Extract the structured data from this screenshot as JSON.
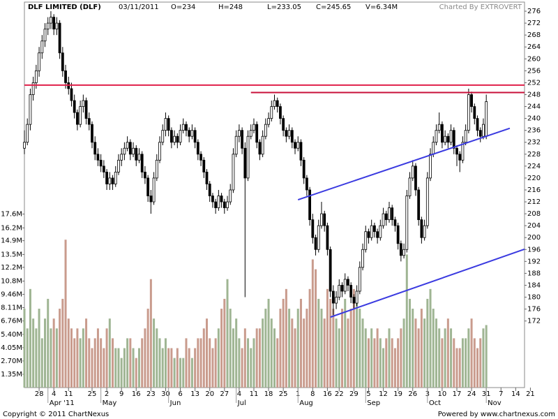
{
  "chart_data": {
    "type": "candlestick",
    "header": [
      "DLF LIMITED (DLF)",
      "03/11/2011",
      "O=234",
      "H=248",
      "L=233.05",
      "C=245.65",
      "V=6.34M"
    ],
    "credit": "Charted By EXTROVERT",
    "footer_left": "Copyright © 2011 ChartNexus",
    "footer_right": "Powered by www.chartnexus.com",
    "up_color": "#ffffff",
    "down_color": "#000000",
    "volume_up_color": "#9fb593",
    "volume_down_color": "#c99b8d",
    "xlim": [
      0,
      170
    ],
    "xticks": [
      {
        "value": 5,
        "label": "28"
      },
      {
        "value": 10,
        "label": "4"
      },
      {
        "value": 15,
        "label": "11"
      },
      {
        "value": 23,
        "label": "25"
      },
      {
        "value": 28,
        "label": "2"
      },
      {
        "value": 33,
        "label": "9"
      },
      {
        "value": 38,
        "label": "16"
      },
      {
        "value": 43,
        "label": "23"
      },
      {
        "value": 48,
        "label": "30"
      },
      {
        "value": 53,
        "label": "6"
      },
      {
        "value": 58,
        "label": "13"
      },
      {
        "value": 63,
        "label": "20"
      },
      {
        "value": 68,
        "label": "27"
      },
      {
        "value": 73,
        "label": "4"
      },
      {
        "value": 78,
        "label": "11"
      },
      {
        "value": 83,
        "label": "18"
      },
      {
        "value": 88,
        "label": "25"
      },
      {
        "value": 93,
        "label": "1"
      },
      {
        "value": 98,
        "label": "8"
      },
      {
        "value": 103,
        "label": "16"
      },
      {
        "value": 107,
        "label": "22"
      },
      {
        "value": 112,
        "label": "29"
      },
      {
        "value": 117,
        "label": "5"
      },
      {
        "value": 122,
        "label": "12"
      },
      {
        "value": 127,
        "label": "19"
      },
      {
        "value": 132,
        "label": "26"
      },
      {
        "value": 137,
        "label": "3"
      },
      {
        "value": 142,
        "label": "10"
      },
      {
        "value": 147,
        "label": "17"
      },
      {
        "value": 152,
        "label": "24"
      },
      {
        "value": 157,
        "label": "31"
      },
      {
        "value": 162,
        "label": "7"
      },
      {
        "value": 167,
        "label": "14"
      },
      {
        "value": 172,
        "label": "21"
      }
    ],
    "month_labels": [
      {
        "value": 8,
        "label": "Apr '11"
      },
      {
        "value": 26,
        "label": "May"
      },
      {
        "value": 49,
        "label": "Jun"
      },
      {
        "value": 72,
        "label": "Jul"
      },
      {
        "value": 93,
        "label": "Aug"
      },
      {
        "value": 116,
        "label": "Sep"
      },
      {
        "value": 137,
        "label": "Oct"
      },
      {
        "value": 157,
        "label": "Nov"
      }
    ],
    "ylim": [
      149.65,
      279.06
    ],
    "yticks": [
      172,
      176,
      180,
      184,
      188,
      192,
      196,
      200,
      204,
      208,
      212,
      216,
      220,
      224,
      228,
      232,
      236,
      240,
      244,
      248,
      252,
      256,
      260,
      264,
      268,
      272,
      276
    ],
    "volume_ylim": [
      0,
      39.1
    ],
    "volume_ticks": [
      {
        "value": 1.35,
        "label": "1.35M"
      },
      {
        "value": 2.7,
        "label": "2.70M"
      },
      {
        "value": 4.05,
        "label": "4.05M"
      },
      {
        "value": 5.4,
        "label": "5.40M"
      },
      {
        "value": 6.76,
        "label": "6.76M"
      },
      {
        "value": 8.11,
        "label": "8.11M"
      },
      {
        "value": 9.46,
        "label": "9.46M"
      },
      {
        "value": 10.8,
        "label": "10.8M"
      },
      {
        "value": 12.2,
        "label": "12.2M"
      },
      {
        "value": 13.5,
        "label": "13.5M"
      },
      {
        "value": 14.9,
        "label": "14.9M"
      },
      {
        "value": 16.2,
        "label": "16.2M"
      },
      {
        "value": 17.6,
        "label": "17.6M"
      }
    ],
    "candles": [
      [
        230,
        236,
        228,
        232
      ],
      [
        232,
        240,
        231,
        238
      ],
      [
        238,
        250,
        236,
        248
      ],
      [
        248,
        254,
        246,
        252
      ],
      [
        252,
        258,
        250,
        256
      ],
      [
        256,
        264,
        254,
        262
      ],
      [
        262,
        268,
        260,
        266
      ],
      [
        266,
        272,
        264,
        270
      ],
      [
        270,
        274,
        268,
        272
      ],
      [
        272,
        276,
        270,
        274
      ],
      [
        274,
        275,
        268,
        270
      ],
      [
        270,
        274,
        268,
        272
      ],
      [
        272,
        273,
        260,
        262
      ],
      [
        262,
        264,
        254,
        256
      ],
      [
        256,
        258,
        250,
        252
      ],
      [
        252,
        254,
        248,
        250
      ],
      [
        250,
        252,
        244,
        246
      ],
      [
        246,
        248,
        240,
        242
      ],
      [
        242,
        243,
        236,
        238
      ],
      [
        238,
        246,
        237,
        244
      ],
      [
        244,
        248,
        242,
        246
      ],
      [
        246,
        247,
        238,
        240
      ],
      [
        240,
        242,
        236,
        238
      ],
      [
        238,
        239,
        230,
        232
      ],
      [
        232,
        234,
        226,
        228
      ],
      [
        228,
        230,
        224,
        226
      ],
      [
        226,
        228,
        222,
        224
      ],
      [
        224,
        226,
        220,
        222
      ],
      [
        222,
        223,
        216,
        218
      ],
      [
        218,
        222,
        216,
        220
      ],
      [
        220,
        221,
        216,
        218
      ],
      [
        218,
        224,
        217,
        222
      ],
      [
        222,
        228,
        221,
        226
      ],
      [
        226,
        230,
        224,
        228
      ],
      [
        228,
        232,
        226,
        230
      ],
      [
        230,
        234,
        229,
        232
      ],
      [
        232,
        233,
        226,
        228
      ],
      [
        228,
        232,
        227,
        230
      ],
      [
        230,
        231,
        224,
        226
      ],
      [
        226,
        230,
        225,
        228
      ],
      [
        228,
        229,
        220,
        222
      ],
      [
        222,
        224,
        218,
        220
      ],
      [
        220,
        221,
        212,
        214
      ],
      [
        214,
        216,
        208,
        212
      ],
      [
        212,
        222,
        211,
        220
      ],
      [
        220,
        228,
        219,
        226
      ],
      [
        226,
        234,
        225,
        232
      ],
      [
        232,
        238,
        231,
        236
      ],
      [
        236,
        242,
        234,
        240
      ],
      [
        240,
        241,
        234,
        236
      ],
      [
        236,
        237,
        230,
        232
      ],
      [
        232,
        236,
        231,
        234
      ],
      [
        234,
        235,
        230,
        232
      ],
      [
        232,
        238,
        231,
        236
      ],
      [
        236,
        240,
        235,
        238
      ],
      [
        238,
        239,
        234,
        236
      ],
      [
        236,
        237,
        232,
        234
      ],
      [
        234,
        238,
        233,
        236
      ],
      [
        236,
        237,
        230,
        232
      ],
      [
        232,
        233,
        226,
        228
      ],
      [
        228,
        229,
        224,
        226
      ],
      [
        226,
        227,
        220,
        222
      ],
      [
        222,
        223,
        216,
        218
      ],
      [
        218,
        219,
        212,
        214
      ],
      [
        214,
        215,
        210,
        212
      ],
      [
        212,
        213,
        208,
        210
      ],
      [
        210,
        216,
        209,
        214
      ],
      [
        214,
        215,
        210,
        212
      ],
      [
        212,
        213,
        208,
        210
      ],
      [
        210,
        214,
        209,
        212
      ],
      [
        212,
        218,
        211,
        216
      ],
      [
        216,
        230,
        215,
        228
      ],
      [
        228,
        236,
        227,
        234
      ],
      [
        234,
        238,
        232,
        236
      ],
      [
        236,
        237,
        228,
        230
      ],
      [
        230,
        232,
        180,
        220
      ],
      [
        220,
        236,
        219,
        234
      ],
      [
        234,
        238,
        233,
        236
      ],
      [
        236,
        240,
        235,
        238
      ],
      [
        238,
        239,
        230,
        232
      ],
      [
        232,
        233,
        226,
        228
      ],
      [
        228,
        236,
        227,
        234
      ],
      [
        234,
        240,
        233,
        238
      ],
      [
        238,
        242,
        237,
        240
      ],
      [
        240,
        246,
        239,
        244
      ],
      [
        244,
        248,
        243,
        246
      ],
      [
        246,
        247,
        242,
        244
      ],
      [
        244,
        245,
        238,
        240
      ],
      [
        240,
        241,
        234,
        236
      ],
      [
        236,
        237,
        232,
        234
      ],
      [
        234,
        238,
        233,
        236
      ],
      [
        236,
        237,
        230,
        232
      ],
      [
        232,
        233,
        228,
        230
      ],
      [
        230,
        234,
        229,
        232
      ],
      [
        232,
        233,
        224,
        226
      ],
      [
        226,
        227,
        218,
        220
      ],
      [
        220,
        221,
        214,
        216
      ],
      [
        216,
        217,
        204,
        206
      ],
      [
        206,
        208,
        198,
        200
      ],
      [
        200,
        201,
        194,
        196
      ],
      [
        196,
        206,
        195,
        204
      ],
      [
        204,
        212,
        203,
        208
      ],
      [
        208,
        209,
        202,
        204
      ],
      [
        204,
        205,
        194,
        196
      ],
      [
        196,
        197,
        180,
        182
      ],
      [
        182,
        184,
        174,
        178
      ],
      [
        178,
        182,
        176,
        180
      ],
      [
        180,
        186,
        179,
        184
      ],
      [
        184,
        185,
        180,
        182
      ],
      [
        182,
        188,
        181,
        186
      ],
      [
        186,
        187,
        182,
        184
      ],
      [
        184,
        185,
        178,
        180
      ],
      [
        180,
        181,
        176,
        178
      ],
      [
        178,
        184,
        177,
        182
      ],
      [
        182,
        192,
        181,
        190
      ],
      [
        190,
        198,
        189,
        196
      ],
      [
        196,
        204,
        195,
        202
      ],
      [
        202,
        203,
        198,
        200
      ],
      [
        200,
        206,
        199,
        204
      ],
      [
        204,
        205,
        200,
        202
      ],
      [
        202,
        203,
        198,
        200
      ],
      [
        200,
        206,
        199,
        204
      ],
      [
        204,
        210,
        203,
        208
      ],
      [
        208,
        209,
        204,
        206
      ],
      [
        206,
        212,
        205,
        210
      ],
      [
        210,
        211,
        204,
        206
      ],
      [
        206,
        207,
        202,
        204
      ],
      [
        204,
        205,
        196,
        198
      ],
      [
        198,
        199,
        192,
        194
      ],
      [
        194,
        198,
        193,
        196
      ],
      [
        196,
        216,
        195,
        214
      ],
      [
        214,
        222,
        213,
        220
      ],
      [
        220,
        226,
        219,
        224
      ],
      [
        224,
        225,
        214,
        216
      ],
      [
        216,
        217,
        204,
        206
      ],
      [
        206,
        207,
        198,
        200
      ],
      [
        200,
        206,
        199,
        204
      ],
      [
        204,
        222,
        203,
        220
      ],
      [
        220,
        230,
        219,
        228
      ],
      [
        228,
        234,
        227,
        232
      ],
      [
        232,
        238,
        231,
        236
      ],
      [
        236,
        242,
        235,
        238
      ],
      [
        238,
        239,
        230,
        232
      ],
      [
        232,
        236,
        231,
        234
      ],
      [
        234,
        235,
        230,
        232
      ],
      [
        232,
        238,
        231,
        236
      ],
      [
        236,
        237,
        228,
        230
      ],
      [
        230,
        231,
        224,
        228
      ],
      [
        228,
        229,
        222,
        226
      ],
      [
        226,
        234,
        225,
        232
      ],
      [
        232,
        238,
        231,
        236
      ],
      [
        236,
        250,
        235,
        248
      ],
      [
        248,
        249,
        242,
        244
      ],
      [
        244,
        245,
        238,
        240
      ],
      [
        240,
        241,
        234,
        236
      ],
      [
        236,
        237,
        232,
        234
      ],
      [
        234,
        240,
        233,
        238
      ],
      [
        234,
        248,
        233.05,
        245.65
      ]
    ],
    "volume": [
      8,
      6,
      10,
      7,
      6,
      8,
      5,
      7,
      9,
      6,
      7,
      6,
      8,
      9,
      15,
      7,
      6,
      5,
      6,
      5,
      6,
      7,
      5,
      4,
      5,
      6,
      5,
      4,
      6,
      7,
      5,
      4,
      4,
      3,
      4,
      5,
      5,
      4,
      3,
      4,
      5,
      6,
      8,
      11,
      7,
      6,
      5,
      4,
      5,
      4,
      4,
      3,
      4,
      3,
      3,
      5,
      4,
      3,
      4,
      5,
      5,
      6,
      7,
      5,
      4,
      5,
      6,
      8,
      9,
      11,
      8,
      6,
      7,
      5,
      4,
      6,
      5,
      4,
      5,
      6,
      6,
      7,
      8,
      9,
      7,
      6,
      5,
      8,
      9,
      10,
      8,
      7,
      6,
      8,
      9,
      7,
      8,
      10,
      13,
      12,
      9,
      8,
      7,
      10,
      9,
      8,
      7,
      6,
      8,
      9,
      7,
      8,
      10,
      9,
      8,
      7,
      6,
      5,
      6,
      5,
      6,
      5,
      4,
      5,
      6,
      5,
      4,
      5,
      6,
      7,
      13.5,
      9,
      8,
      7,
      6,
      8,
      7,
      9,
      10,
      8,
      7,
      6,
      5,
      6,
      7,
      6,
      5,
      4,
      4,
      5,
      5,
      6,
      7,
      5,
      4,
      5,
      6,
      6.34
    ],
    "trendlines": [
      {
        "x": [
          0,
          170
        ],
        "y": [
          251.2,
          251.2
        ],
        "color": "#e0204a"
      },
      {
        "x": [
          77,
          170
        ],
        "y": [
          248.7,
          248.7
        ],
        "color": "#c8103a"
      },
      {
        "x": [
          93,
          165
        ],
        "y": [
          212.7,
          236.7
        ],
        "color": "#3a3ae0"
      },
      {
        "x": [
          104,
          170
        ],
        "y": [
          173.3,
          196.1
        ],
        "color": "#3a3ae0"
      }
    ]
  }
}
